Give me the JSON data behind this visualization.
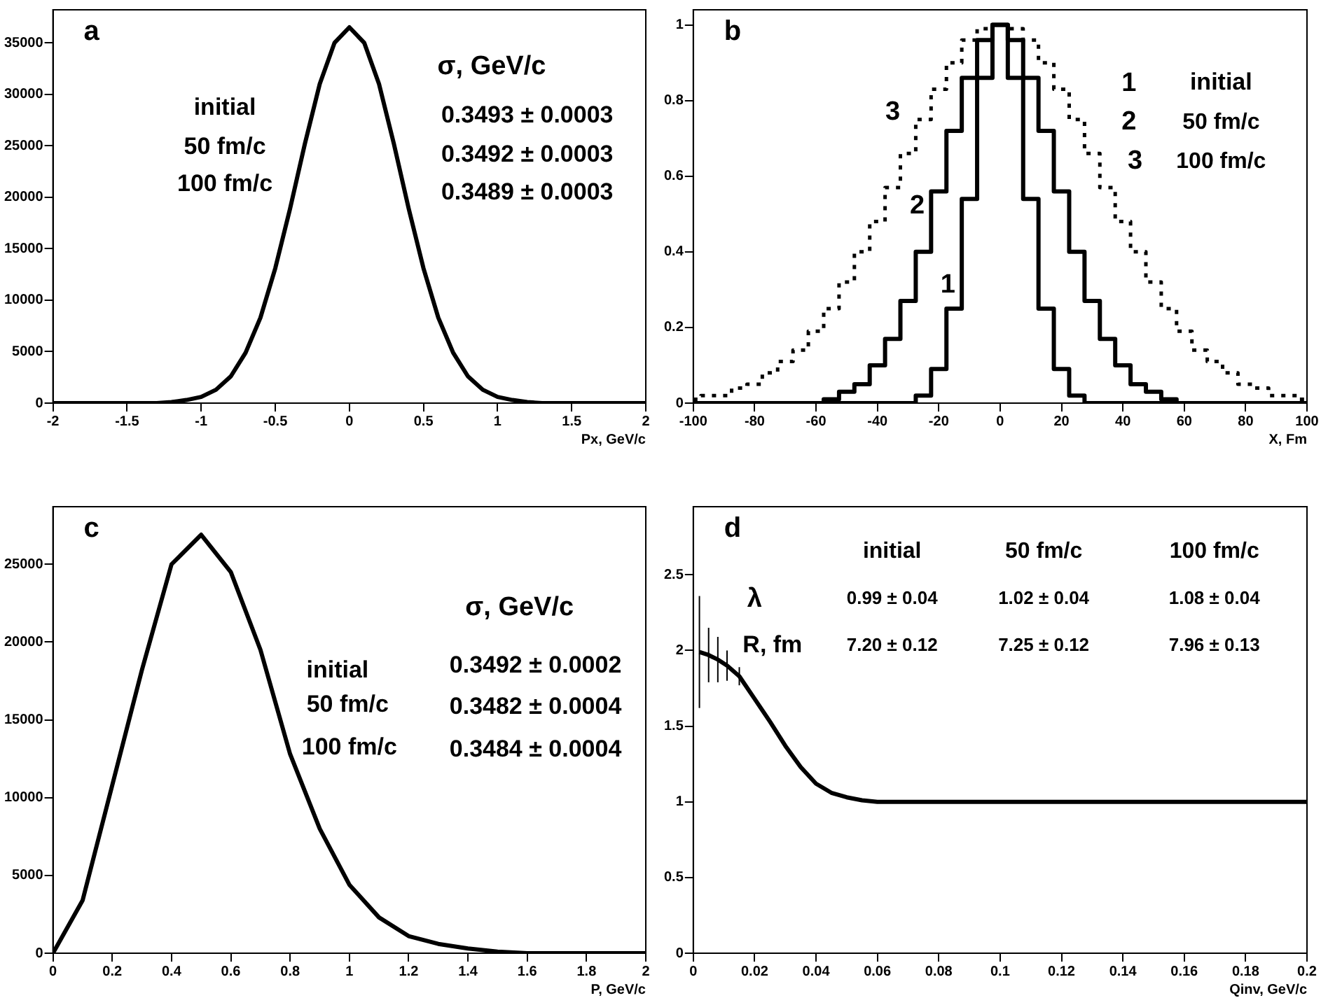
{
  "chart_data": [
    {
      "type": "line",
      "title": "a",
      "xlabel": "Px, GeV/c",
      "marker": "none",
      "color": "#000000",
      "x": [
        -2,
        -1.9,
        -1.8,
        -1.7,
        -1.6,
        -1.5,
        -1.4,
        -1.3,
        -1.2,
        -1.1,
        -1,
        -0.9,
        -0.8,
        -0.7,
        -0.6,
        -0.5,
        -0.4,
        -0.3,
        -0.2,
        -0.1,
        0,
        0.1,
        0.2,
        0.3,
        0.4,
        0.5,
        0.6,
        0.7,
        0.8,
        0.9,
        1,
        1.1,
        1.2,
        1.3,
        1.4,
        1.5,
        1.6,
        1.7,
        1.8,
        1.9,
        2
      ],
      "values": [
        0,
        0,
        0,
        0,
        0,
        0,
        0,
        0,
        100,
        300,
        600,
        1300,
        2600,
        4900,
        8300,
        13100,
        18900,
        25200,
        31000,
        35000,
        36500,
        35000,
        31000,
        25200,
        18900,
        13100,
        8300,
        4900,
        2600,
        1300,
        600,
        300,
        100,
        0,
        0,
        0,
        0,
        0,
        0,
        0,
        0
      ],
      "xlim": [
        -2,
        2
      ],
      "xticks": [
        -2,
        -1.5,
        -1,
        -0.5,
        0,
        0.5,
        1,
        1.5,
        2
      ],
      "ylim": [
        0,
        38200
      ],
      "yticks": [
        0,
        5000,
        10000,
        15000,
        20000,
        25000,
        30000,
        35000
      ],
      "annotations": [
        "initial",
        "50 fm/c",
        "100 fm/c",
        "σ, GeV/c",
        "0.3493 ± 0.0003",
        "0.3492 ± 0.0003",
        "0.3489 ± 0.0003"
      ]
    },
    {
      "type": "step",
      "title": "b",
      "xlabel": "X, Fm",
      "marker": "none",
      "x": [
        -100,
        -95,
        -90,
        -85,
        -80,
        -75,
        -70,
        -65,
        -60,
        -55,
        -50,
        -45,
        -40,
        -35,
        -30,
        -25,
        -20,
        -15,
        -10,
        -5,
        0,
        5,
        10,
        15,
        20,
        25,
        30,
        35,
        40,
        45,
        50,
        55,
        60,
        65,
        70,
        75,
        80,
        85,
        90,
        95,
        100
      ],
      "series": [
        {
          "color": "#000000",
          "line_style": "solid",
          "values": [
            0,
            0,
            0,
            0,
            0,
            0,
            0,
            0,
            0,
            0,
            0,
            0,
            0,
            0,
            0,
            0.02,
            0.09,
            0.25,
            0.54,
            0.86,
            1,
            0.86,
            0.54,
            0.25,
            0.09,
            0.02,
            0,
            0,
            0,
            0,
            0,
            0,
            0,
            0,
            0,
            0,
            0,
            0,
            0,
            0,
            0
          ]
        },
        {
          "color": "#000000",
          "line_style": "solid",
          "values": [
            0,
            0,
            0,
            0,
            0,
            0,
            0,
            0,
            0,
            0.01,
            0.03,
            0.05,
            0.1,
            0.17,
            0.27,
            0.4,
            0.56,
            0.72,
            0.86,
            0.96,
            1,
            0.96,
            0.86,
            0.72,
            0.56,
            0.4,
            0.27,
            0.17,
            0.1,
            0.05,
            0.03,
            0.01,
            0,
            0,
            0,
            0,
            0,
            0,
            0,
            0,
            0
          ]
        },
        {
          "color": "#000000",
          "line_style": "dotted",
          "values": [
            0.01,
            0.02,
            0.02,
            0.04,
            0.05,
            0.08,
            0.11,
            0.14,
            0.19,
            0.25,
            0.32,
            0.4,
            0.48,
            0.57,
            0.66,
            0.75,
            0.83,
            0.9,
            0.96,
            0.99,
            1,
            0.99,
            0.96,
            0.9,
            0.83,
            0.75,
            0.66,
            0.57,
            0.48,
            0.4,
            0.32,
            0.25,
            0.19,
            0.14,
            0.11,
            0.08,
            0.05,
            0.04,
            0.02,
            0.02,
            0.01
          ]
        }
      ],
      "xlim": [
        -100,
        100
      ],
      "xticks": [
        -100,
        -80,
        -60,
        -40,
        -20,
        0,
        20,
        40,
        60,
        80,
        100
      ],
      "ylim": [
        0,
        1.04
      ],
      "yticks": [
        0,
        0.2,
        0.4,
        0.6,
        0.8,
        1
      ],
      "annotations": [
        "3",
        "2",
        "1",
        "1",
        "initial",
        "2",
        "50 fm/c",
        "3",
        "100 fm/c"
      ]
    },
    {
      "type": "line",
      "title": "c",
      "xlabel": "P, GeV/c",
      "marker": "none",
      "color": "#000000",
      "x": [
        0,
        0.1,
        0.2,
        0.3,
        0.4,
        0.5,
        0.6,
        0.7,
        0.8,
        0.9,
        1,
        1.1,
        1.2,
        1.3,
        1.4,
        1.5,
        1.6,
        1.7,
        1.8,
        1.9,
        2
      ],
      "values": [
        0,
        3400,
        10800,
        18200,
        25000,
        26900,
        24500,
        19500,
        12800,
        8000,
        4400,
        2300,
        1100,
        600,
        300,
        100,
        0,
        0,
        0,
        0,
        0
      ],
      "xlim": [
        0,
        2
      ],
      "xticks": [
        0,
        0.2,
        0.4,
        0.6,
        0.8,
        1,
        1.2,
        1.4,
        1.6,
        1.8,
        2
      ],
      "ylim": [
        0,
        28700
      ],
      "yticks": [
        0,
        5000,
        10000,
        15000,
        20000,
        25000
      ],
      "annotations": [
        "initial",
        "50 fm/c",
        "100 fm/c",
        "σ, GeV/c",
        "0.3492 ± 0.0002",
        "0.3482 ± 0.0004",
        "0.3484 ± 0.0004"
      ]
    },
    {
      "type": "line",
      "title": "d",
      "xlabel": "Qinv, GeV/c",
      "marker": "none",
      "color": "#000000",
      "x": [
        0.002,
        0.005,
        0.008,
        0.011,
        0.015,
        0.02,
        0.025,
        0.03,
        0.035,
        0.04,
        0.045,
        0.05,
        0.055,
        0.06,
        0.07,
        0.08,
        0.09,
        0.1,
        0.11,
        0.12,
        0.13,
        0.14,
        0.15,
        0.16,
        0.17,
        0.18,
        0.19,
        0.2
      ],
      "values": [
        1.99,
        1.97,
        1.94,
        1.9,
        1.83,
        1.68,
        1.53,
        1.37,
        1.23,
        1.12,
        1.06,
        1.03,
        1.01,
        1,
        1,
        1,
        1,
        1,
        1,
        1,
        1,
        1,
        1,
        1,
        1,
        1,
        1,
        1
      ],
      "errors": [
        0.37,
        0.18,
        0.15,
        0.1,
        0.06,
        null,
        null,
        null,
        null,
        null,
        null,
        null,
        null,
        null,
        null,
        null,
        null,
        null,
        null,
        null,
        null,
        null,
        null,
        null,
        null,
        null,
        null,
        null
      ],
      "xlim": [
        0,
        0.2
      ],
      "xticks": [
        0,
        0.02,
        0.04,
        0.06,
        0.08,
        0.1,
        0.12,
        0.14,
        0.16,
        0.18,
        0.2
      ],
      "ylim": [
        0,
        2.95
      ],
      "yticks": [
        0,
        0.5,
        1,
        1.5,
        2,
        2.5
      ],
      "annotations": [
        "initial",
        "50 fm/c",
        "100 fm/c",
        "λ",
        "0.99 ± 0.04",
        "1.02 ± 0.04",
        "1.08 ± 0.04",
        "R, fm",
        "7.20 ± 0.12",
        "7.25 ± 0.12",
        "7.96 ± 0.13"
      ]
    }
  ]
}
